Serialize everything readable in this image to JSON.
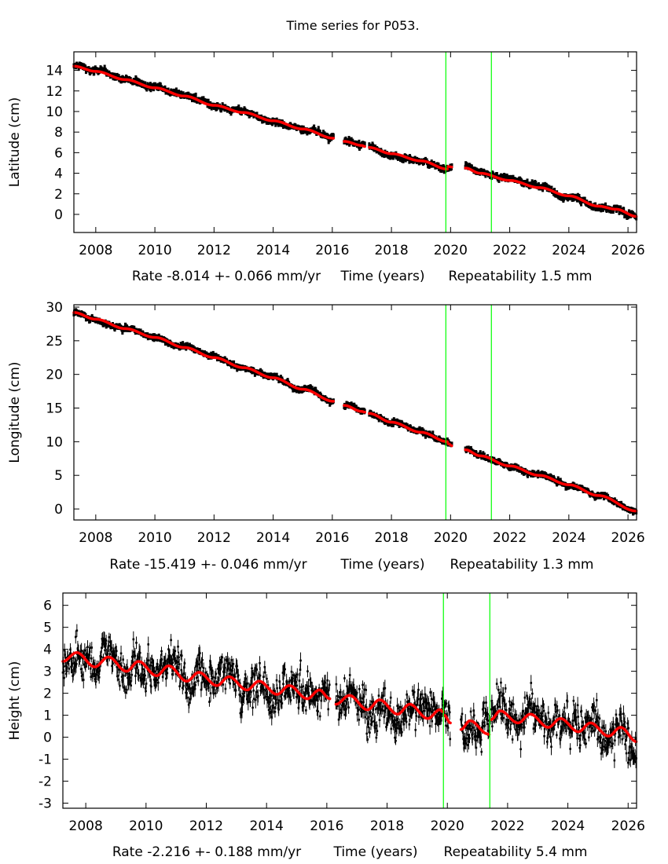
{
  "title": "Time series for P053.",
  "colors": {
    "data": "#000000",
    "model": "#ff0000",
    "event_lines": "#00ff00",
    "axes": "#000000"
  },
  "chart_data": [
    {
      "type": "scatter",
      "ylabel": "Latitude (cm)",
      "xlabel": "Time (years)",
      "rate_text": "Rate -8.014 +- 0.066 mm/yr",
      "repeatability_text": "Repeatability 1.5 mm",
      "xlim": [
        2007.26,
        2026.29
      ],
      "ylim": [
        -1.76,
        15.8
      ],
      "xticks": [
        2008,
        2010,
        2012,
        2014,
        2016,
        2018,
        2020,
        2022,
        2024,
        2026
      ],
      "yticks": [
        0,
        2,
        4,
        6,
        8,
        10,
        12,
        14
      ],
      "event_lines_x": [
        2019.84,
        2021.38
      ],
      "grid": false,
      "model_segments": [
        {
          "x": [
            2007.26,
            2008,
            2009,
            2010,
            2011,
            2012,
            2013,
            2014,
            2015,
            2016.05
          ],
          "y": [
            14.4,
            13.9,
            13.1,
            12.3,
            11.5,
            10.6,
            9.9,
            9.1,
            8.3,
            7.4
          ]
        },
        {
          "x": [
            2016.4,
            2017.0,
            2017.1
          ],
          "y": [
            7.1,
            6.7,
            6.6
          ]
        },
        {
          "x": [
            2017.25,
            2018,
            2019,
            2019.9
          ],
          "y": [
            6.5,
            5.9,
            5.2,
            4.4
          ]
        },
        {
          "x": [
            2019.92,
            2020.05
          ],
          "y": [
            4.65,
            4.6
          ]
        },
        {
          "x": [
            2020.5,
            2021,
            2022,
            2023,
            2024,
            2025,
            2025.6,
            2026.29
          ],
          "y": [
            4.5,
            4.0,
            3.3,
            2.6,
            1.8,
            0.8,
            0.5,
            -0.2
          ]
        }
      ]
    },
    {
      "type": "scatter",
      "ylabel": "Longitude (cm)",
      "xlabel": "Time (years)",
      "rate_text": "Rate -15.419 +- 0.046 mm/yr",
      "repeatability_text": "Repeatability 1.3 mm",
      "xlim": [
        2007.26,
        2026.29
      ],
      "ylim": [
        -1.63,
        30.35
      ],
      "xticks": [
        2008,
        2010,
        2012,
        2014,
        2016,
        2018,
        2020,
        2022,
        2024,
        2026
      ],
      "yticks": [
        0,
        5,
        10,
        15,
        20,
        25,
        30
      ],
      "event_lines_x": [
        2019.84,
        2021.38
      ],
      "grid": false,
      "model_segments": [
        {
          "x": [
            2007.26,
            2008,
            2009,
            2010,
            2011,
            2012,
            2013,
            2014,
            2015,
            2016.05
          ],
          "y": [
            29.2,
            28.2,
            26.8,
            25.5,
            24.0,
            22.5,
            21.0,
            19.5,
            17.8,
            16.0
          ]
        },
        {
          "x": [
            2016.4,
            2017,
            2017.1
          ],
          "y": [
            15.4,
            14.5,
            14.4
          ]
        },
        {
          "x": [
            2017.25,
            2018,
            2019,
            2019.9
          ],
          "y": [
            14.2,
            12.9,
            11.4,
            10.0
          ]
        },
        {
          "x": [
            2019.92,
            2020.05
          ],
          "y": [
            9.7,
            9.4
          ]
        },
        {
          "x": [
            2020.5,
            2021,
            2022,
            2023,
            2024,
            2025,
            2026.29
          ],
          "y": [
            8.8,
            7.9,
            6.4,
            5.0,
            3.6,
            2.0,
            -0.3
          ]
        }
      ]
    },
    {
      "type": "scatter",
      "ylabel": "Height (cm)",
      "xlabel": "Time (years)",
      "rate_text": "Rate -2.216 +- 0.188 mm/yr",
      "repeatability_text": "Repeatability 5.4 mm",
      "xlim": [
        2007.24,
        2026.28
      ],
      "ylim": [
        -3.23,
        6.56
      ],
      "xticks": [
        2008,
        2010,
        2012,
        2014,
        2016,
        2018,
        2020,
        2022,
        2024,
        2026
      ],
      "yticks": [
        -3,
        -2,
        -1,
        0,
        1,
        2,
        3,
        4,
        5,
        6
      ],
      "event_lines_x": [
        2019.87,
        2021.41
      ],
      "grid": false,
      "model_segments": [
        {
          "x": [
            2007.24,
            2007.7,
            2008.3,
            2008.75,
            2009.35,
            2009.75,
            2010.35,
            2010.75,
            2011.35,
            2011.75,
            2012.35,
            2012.75,
            2013.35,
            2013.75,
            2014.35,
            2014.75,
            2015.35,
            2015.75,
            2016.1
          ],
          "y": [
            3.45,
            3.85,
            3.2,
            3.65,
            3.0,
            3.45,
            2.8,
            3.25,
            2.55,
            2.95,
            2.35,
            2.75,
            2.15,
            2.55,
            1.95,
            2.35,
            1.75,
            2.15,
            1.75
          ]
        },
        {
          "x": [
            2016.3,
            2016.75,
            2017.35,
            2017.75,
            2018.35,
            2018.75,
            2019.35,
            2019.75,
            2019.87
          ],
          "y": [
            1.5,
            1.9,
            1.25,
            1.7,
            1.05,
            1.5,
            0.85,
            1.25,
            1.15
          ]
        },
        {
          "x": [
            2019.9,
            2020.1
          ],
          "y": [
            1.0,
            0.65
          ]
        },
        {
          "x": [
            2020.45,
            2020.75,
            2021.35,
            2021.4
          ],
          "y": [
            0.35,
            0.75,
            0.15,
            0.12
          ]
        },
        {
          "x": [
            2021.45,
            2021.75,
            2022.35,
            2022.75,
            2023.35,
            2023.75,
            2024.35,
            2024.75,
            2025.35,
            2025.75,
            2026.28
          ],
          "y": [
            0.8,
            1.2,
            0.65,
            1.05,
            0.45,
            0.85,
            0.25,
            0.65,
            0.05,
            0.45,
            -0.2
          ]
        }
      ]
    }
  ]
}
